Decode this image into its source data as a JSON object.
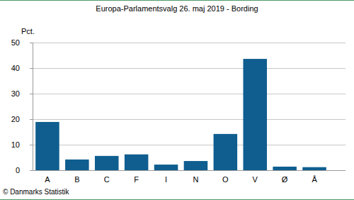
{
  "chart_data": {
    "type": "bar",
    "title": "Europa-Parlamentsvalg 26. maj 2019 - Bording",
    "ylabel": "Pct.",
    "source": "© Danmarks Statistik",
    "categories": [
      "A",
      "B",
      "C",
      "F",
      "I",
      "N",
      "O",
      "V",
      "Ø",
      "Å"
    ],
    "values": [
      18.9,
      4.2,
      5.6,
      6.2,
      2.2,
      3.6,
      14.2,
      43.6,
      1.4,
      1.2
    ],
    "color": "#0f5e8f",
    "ylim": [
      0,
      50
    ],
    "yticks": [
      0,
      10,
      20,
      30,
      40,
      50
    ],
    "grid": true
  }
}
